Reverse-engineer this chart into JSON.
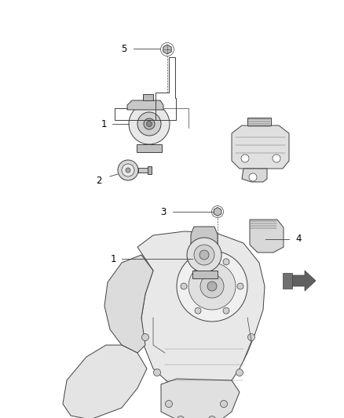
{
  "background_color": "#ffffff",
  "fig_width": 4.38,
  "fig_height": 5.33,
  "dpi": 100,
  "line_color": "#404040",
  "label_fontsize": 8.5,
  "callout_lw": 0.6
}
